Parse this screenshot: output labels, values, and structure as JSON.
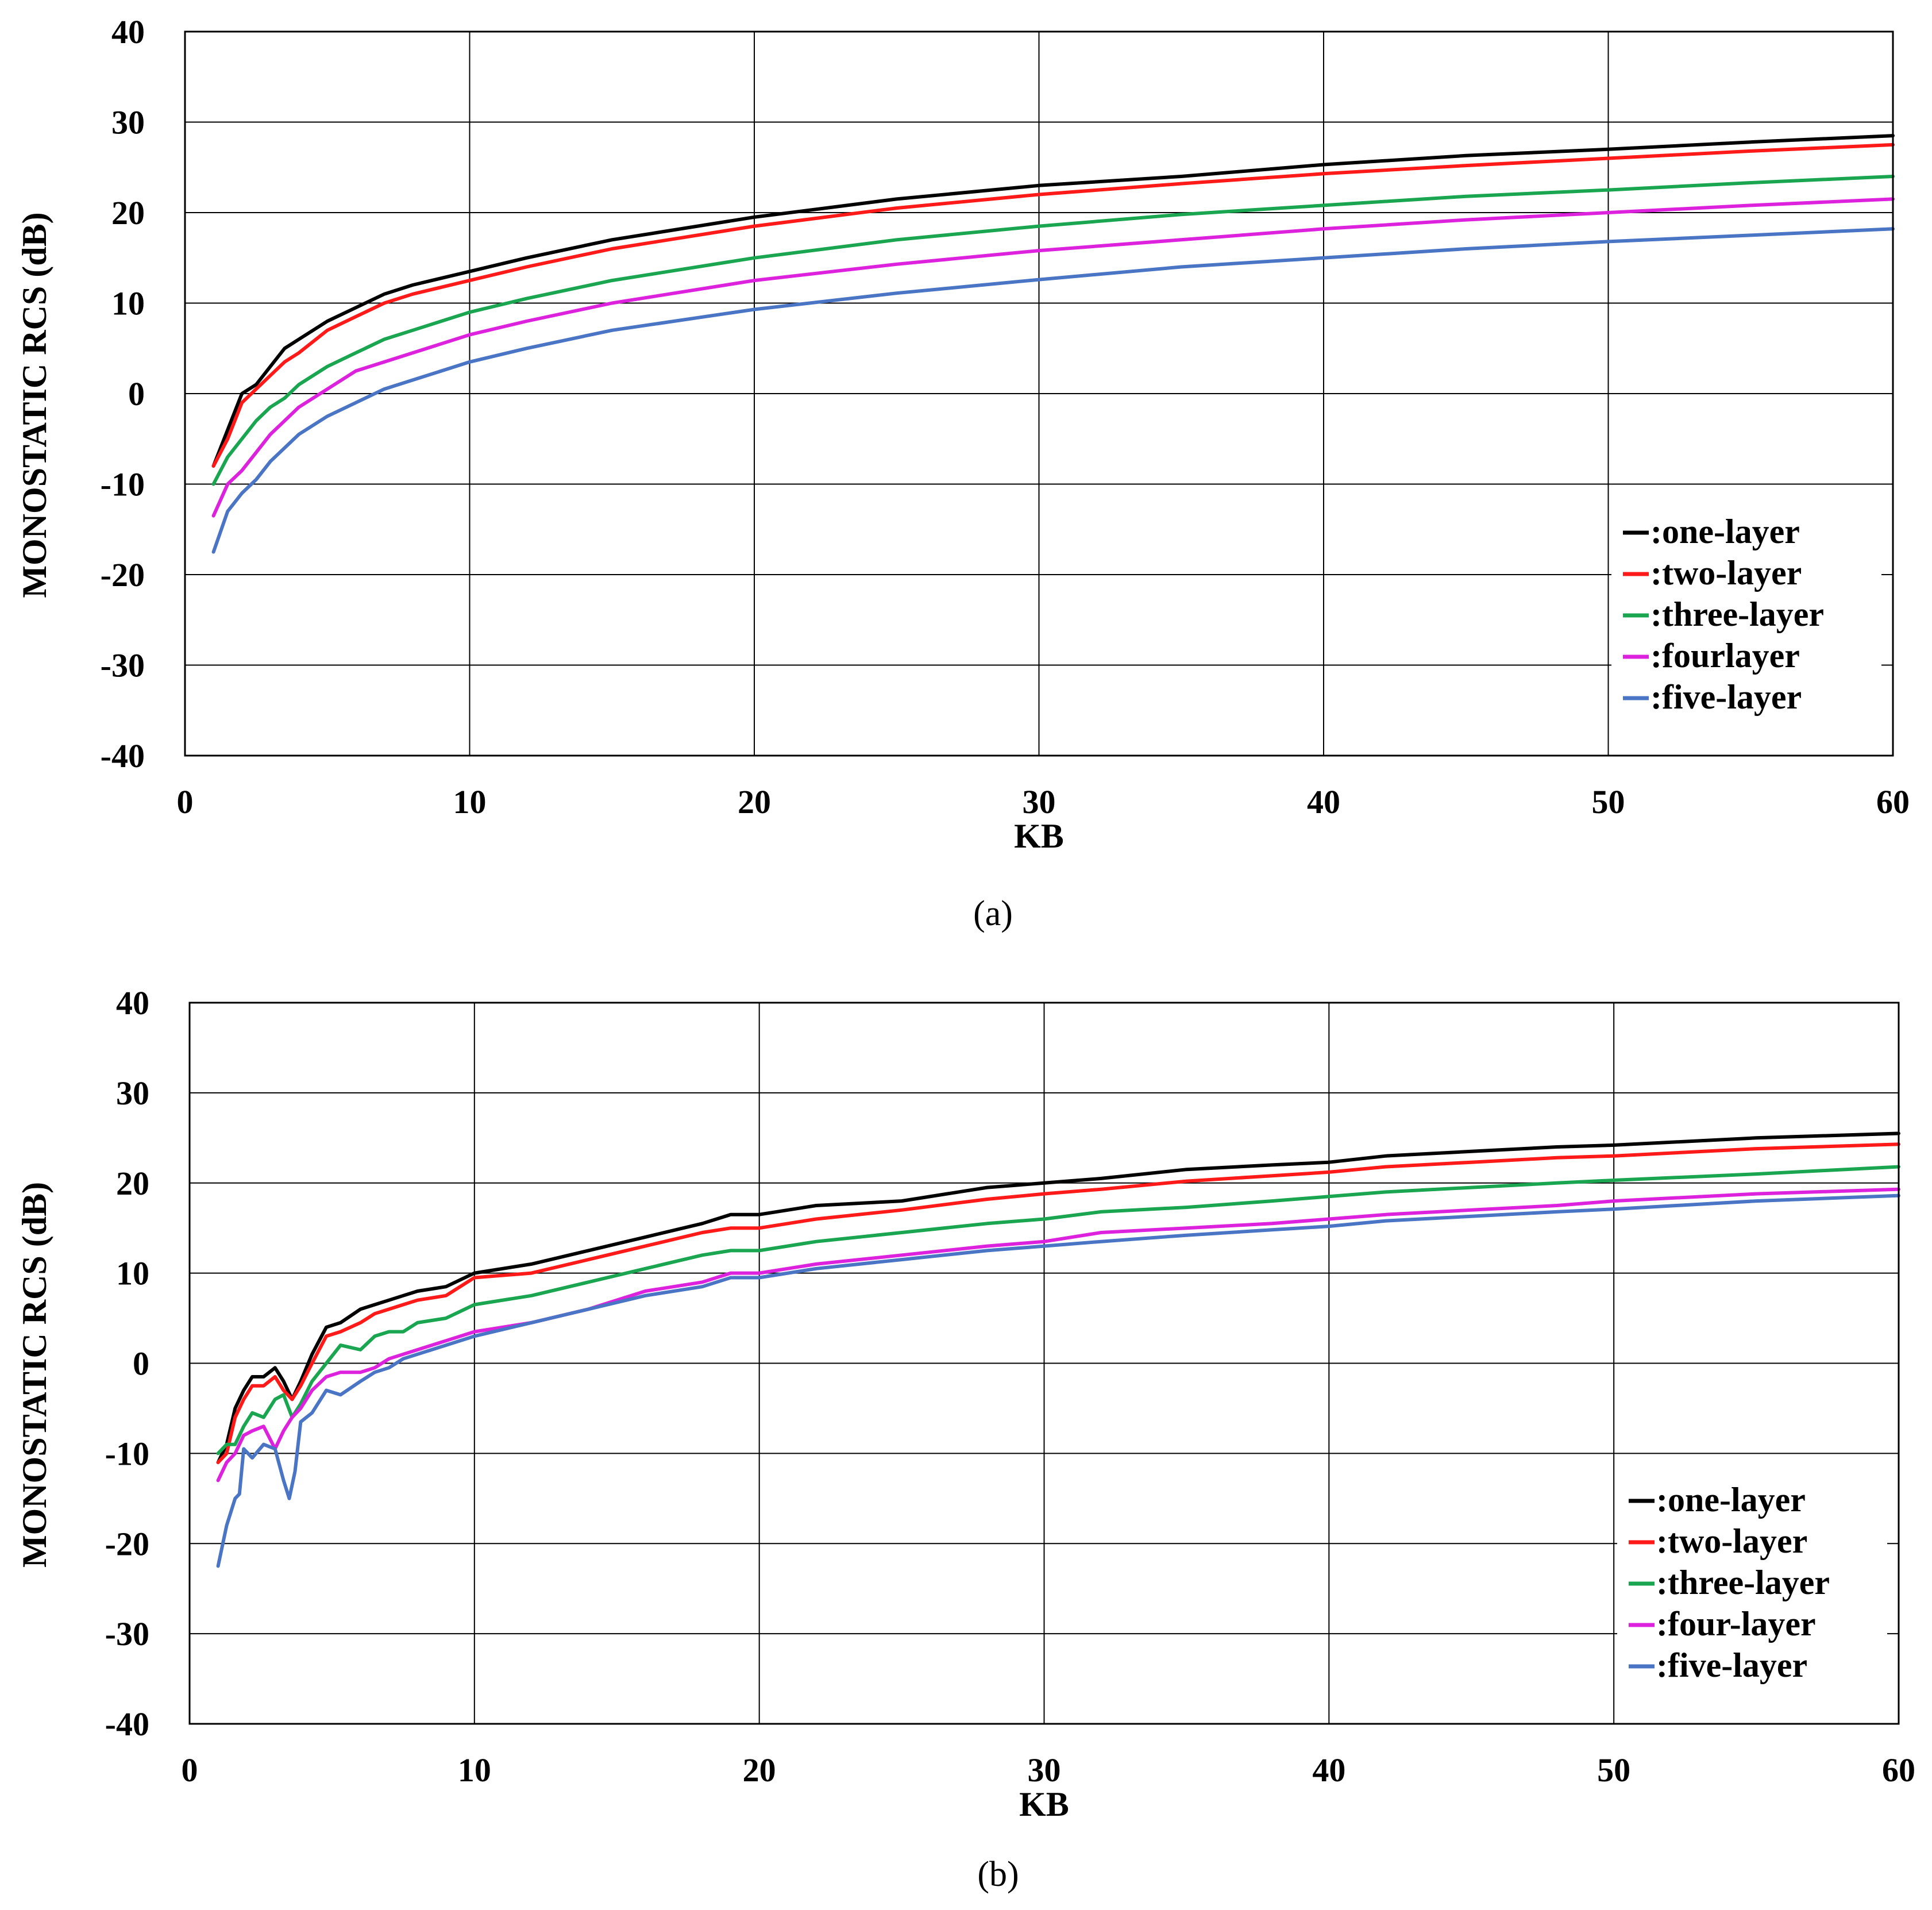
{
  "colors": {
    "one": "#000000",
    "two": "#ff1a1a",
    "three": "#1aa650",
    "four": "#dd22dd",
    "five": "#4a74c4",
    "grid": "#000000",
    "background": "#ffffff"
  },
  "chart_data": [
    {
      "type": "line",
      "panel_label": "(a)",
      "title": "",
      "xlabel": "KB",
      "ylabel": "MONOSTATIC RCS (dB)",
      "xlim": [
        0,
        60
      ],
      "ylim": [
        -40,
        40
      ],
      "xticks": [
        0,
        10,
        20,
        30,
        40,
        50,
        60
      ],
      "yticks": [
        -40,
        -30,
        -20,
        -10,
        0,
        10,
        20,
        30,
        40
      ],
      "grid": true,
      "legend_position": "bottom-right",
      "series": [
        {
          "name": ":one-layer",
          "color_key": "one",
          "x": [
            1,
            1.5,
            2,
            2.5,
            3,
            3.5,
            4,
            5,
            6,
            7,
            8,
            10,
            12,
            15,
            20,
            25,
            30,
            35,
            40,
            45,
            50,
            55,
            60
          ],
          "y": [
            -8,
            -4,
            0,
            1,
            3,
            5,
            6,
            8,
            9.5,
            11,
            12,
            13.5,
            15,
            17,
            19.5,
            21.5,
            23,
            24,
            25.3,
            26.3,
            27,
            27.8,
            28.5
          ]
        },
        {
          "name": ":two-layer",
          "color_key": "two",
          "x": [
            1,
            1.5,
            2,
            2.5,
            3,
            3.5,
            4,
            5,
            6,
            7,
            8,
            10,
            12,
            15,
            20,
            25,
            30,
            35,
            40,
            45,
            50,
            55,
            60
          ],
          "y": [
            -8,
            -5,
            -1,
            0.5,
            2,
            3.5,
            4.5,
            7,
            8.5,
            10,
            11,
            12.5,
            14,
            16,
            18.5,
            20.5,
            22,
            23.2,
            24.3,
            25.2,
            26,
            26.8,
            27.5
          ]
        },
        {
          "name": ":three-layer",
          "color_key": "three",
          "x": [
            1,
            1.5,
            2,
            2.5,
            3,
            3.5,
            4,
            5,
            6,
            7,
            8,
            10,
            12,
            15,
            20,
            25,
            30,
            35,
            40,
            45,
            50,
            55,
            60
          ],
          "y": [
            -10,
            -7,
            -5,
            -3,
            -1.5,
            -0.5,
            1,
            3,
            4.5,
            6,
            7,
            9,
            10.5,
            12.5,
            15,
            17,
            18.5,
            19.8,
            20.8,
            21.8,
            22.5,
            23.3,
            24
          ]
        },
        {
          "name": ":fourlayer",
          "color_key": "four",
          "x": [
            1,
            1.5,
            2,
            2.5,
            3,
            3.5,
            4,
            5,
            6,
            7,
            8,
            10,
            12,
            15,
            20,
            25,
            30,
            35,
            40,
            45,
            50,
            55,
            60
          ],
          "y": [
            -13.5,
            -10,
            -8.5,
            -6.5,
            -4.5,
            -3,
            -1.5,
            0.5,
            2.5,
            3.5,
            4.5,
            6.5,
            8,
            10,
            12.5,
            14.3,
            15.8,
            17,
            18.2,
            19.2,
            20,
            20.8,
            21.5
          ]
        },
        {
          "name": ":five-layer",
          "color_key": "five",
          "x": [
            1,
            1.5,
            2,
            2.5,
            3,
            3.5,
            4,
            5,
            6,
            7,
            8,
            10,
            12,
            15,
            20,
            25,
            30,
            35,
            40,
            45,
            50,
            55,
            60
          ],
          "y": [
            -17.5,
            -13,
            -11,
            -9.5,
            -7.5,
            -6,
            -4.5,
            -2.5,
            -1,
            0.5,
            1.5,
            3.5,
            5,
            7,
            9.3,
            11.1,
            12.6,
            14,
            15,
            16,
            16.8,
            17.5,
            18.2
          ]
        }
      ]
    },
    {
      "type": "line",
      "panel_label": "(b)",
      "title": "",
      "xlabel": "KB",
      "ylabel": "MONOSTATIC RCS (dB)",
      "xlim": [
        0,
        60
      ],
      "ylim": [
        -40,
        40
      ],
      "xticks": [
        0,
        10,
        20,
        30,
        40,
        50,
        60
      ],
      "yticks": [
        -40,
        -30,
        -20,
        -10,
        0,
        10,
        20,
        30,
        40
      ],
      "grid": true,
      "legend_position": "bottom-right",
      "series": [
        {
          "name": ":one-layer",
          "color_key": "one",
          "x": [
            1,
            1.3,
            1.6,
            1.9,
            2.2,
            2.6,
            3.0,
            3.3,
            3.6,
            3.9,
            4.3,
            4.8,
            5.3,
            6.0,
            6.5,
            7.0,
            7.5,
            8.0,
            9.0,
            10,
            12,
            14,
            16,
            18,
            19,
            20,
            22,
            25,
            28,
            30,
            32,
            35,
            38,
            40,
            42,
            45,
            48,
            50,
            55,
            60
          ],
          "y": [
            -11,
            -9,
            -5,
            -3,
            -1.5,
            -1.5,
            -0.5,
            -2,
            -4,
            -2,
            1,
            4,
            4.5,
            6,
            6.5,
            7,
            7.5,
            8,
            8.5,
            10,
            11,
            12.5,
            14,
            15.5,
            16.5,
            16.5,
            17.5,
            18,
            19.5,
            20,
            20.5,
            21.5,
            22,
            22.3,
            23,
            23.5,
            24,
            24.2,
            25,
            25.5
          ]
        },
        {
          "name": ":two-layer",
          "color_key": "two",
          "x": [
            1,
            1.3,
            1.6,
            1.9,
            2.2,
            2.6,
            3.0,
            3.3,
            3.6,
            3.9,
            4.3,
            4.8,
            5.3,
            6.0,
            6.5,
            7.0,
            7.5,
            8.0,
            9.0,
            10,
            12,
            14,
            16,
            18,
            19,
            20,
            22,
            25,
            28,
            30,
            32,
            35,
            38,
            40,
            42,
            45,
            48,
            50,
            55,
            60
          ],
          "y": [
            -11,
            -10,
            -6,
            -4,
            -2.5,
            -2.5,
            -1.5,
            -3,
            -4,
            -2.5,
            0,
            3,
            3.5,
            4.5,
            5.5,
            6,
            6.5,
            7,
            7.5,
            9.5,
            10,
            11.5,
            13,
            14.5,
            15,
            15,
            16,
            17,
            18.2,
            18.8,
            19.3,
            20.2,
            20.8,
            21.2,
            21.8,
            22.3,
            22.8,
            23,
            23.8,
            24.3
          ]
        },
        {
          "name": ":three-layer",
          "color_key": "three",
          "x": [
            1,
            1.3,
            1.6,
            1.9,
            2.2,
            2.6,
            3.0,
            3.3,
            3.6,
            3.9,
            4.3,
            4.8,
            5.3,
            6.0,
            6.5,
            7.0,
            7.5,
            8.0,
            9.0,
            10,
            12,
            14,
            16,
            18,
            19,
            20,
            22,
            25,
            28,
            30,
            32,
            35,
            38,
            40,
            42,
            45,
            48,
            50,
            55,
            60
          ],
          "y": [
            -10,
            -9,
            -9,
            -7,
            -5.5,
            -6,
            -4,
            -3.5,
            -6,
            -4.5,
            -2,
            0,
            2,
            1.5,
            3,
            3.5,
            3.5,
            4.5,
            5,
            6.5,
            7.5,
            9,
            10.5,
            12,
            12.5,
            12.5,
            13.5,
            14.5,
            15.5,
            16,
            16.8,
            17.3,
            18,
            18.5,
            19,
            19.5,
            20,
            20.3,
            21,
            21.8
          ]
        },
        {
          "name": ":four-layer",
          "color_key": "four",
          "x": [
            1,
            1.3,
            1.6,
            1.9,
            2.2,
            2.6,
            3.0,
            3.3,
            3.6,
            3.9,
            4.3,
            4.8,
            5.3,
            6.0,
            6.5,
            7.0,
            7.5,
            8.0,
            9.0,
            10,
            12,
            14,
            16,
            18,
            19,
            20,
            22,
            25,
            28,
            30,
            32,
            35,
            38,
            40,
            42,
            45,
            48,
            50,
            55,
            60
          ],
          "y": [
            -13,
            -11,
            -10,
            -8,
            -7.5,
            -7,
            -9.5,
            -7.5,
            -6,
            -5,
            -3,
            -1.5,
            -1,
            -1,
            -0.5,
            0.5,
            1,
            1.5,
            2.5,
            3.5,
            4.5,
            6,
            8,
            9,
            10,
            10,
            11,
            12,
            13,
            13.5,
            14.5,
            15,
            15.5,
            16,
            16.5,
            17,
            17.5,
            18,
            18.8,
            19.3
          ]
        },
        {
          "name": ":five-layer",
          "color_key": "five",
          "x": [
            1,
            1.3,
            1.6,
            1.75,
            1.9,
            2.2,
            2.6,
            3.0,
            3.3,
            3.5,
            3.7,
            3.9,
            4.3,
            4.8,
            5.3,
            6.0,
            6.5,
            7.0,
            7.5,
            8.0,
            9.0,
            10,
            12,
            14,
            16,
            18,
            19,
            20,
            22,
            25,
            28,
            30,
            32,
            35,
            38,
            40,
            42,
            45,
            48,
            50,
            55,
            60
          ],
          "y": [
            -22.5,
            -18,
            -15,
            -14.5,
            -9.5,
            -10.5,
            -9,
            -9.5,
            -13,
            -15,
            -12,
            -6.5,
            -5.5,
            -3,
            -3.5,
            -2,
            -1,
            -0.5,
            0.5,
            1,
            2,
            3,
            4.5,
            6,
            7.5,
            8.5,
            9.5,
            9.5,
            10.5,
            11.5,
            12.5,
            13,
            13.5,
            14.2,
            14.8,
            15.2,
            15.8,
            16.3,
            16.8,
            17.1,
            18,
            18.6
          ]
        }
      ]
    }
  ]
}
